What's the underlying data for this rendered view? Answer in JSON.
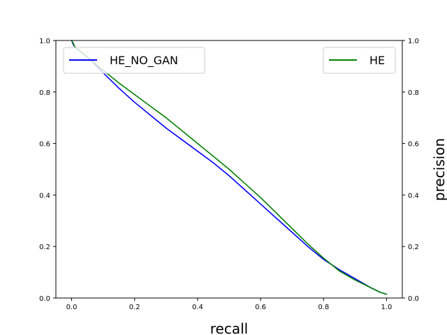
{
  "chart_data": {
    "type": "line",
    "title": "",
    "xlabel": "recall",
    "ylabel": "precision",
    "xlim": [
      -0.05,
      1.05
    ],
    "ylim": [
      0.0,
      1.0
    ],
    "x_ticks": [
      "0.0",
      "0.2",
      "0.4",
      "0.6",
      "0.8",
      "1.0"
    ],
    "x_tick_values": [
      0.0,
      0.2,
      0.4,
      0.6,
      0.8,
      1.0
    ],
    "y_ticks": [
      "0.0",
      "0.2",
      "0.4",
      "0.6",
      "0.8",
      "1.0"
    ],
    "y_tick_values": [
      0.0,
      0.2,
      0.4,
      0.6,
      0.8,
      1.0
    ],
    "grid": false,
    "series": [
      {
        "name": "HE_NO_GAN",
        "color": "#0000ff",
        "legend_position": "upper-left",
        "x": [
          0.0,
          0.005,
          0.01,
          0.03,
          0.06,
          0.1,
          0.15,
          0.2,
          0.25,
          0.3,
          0.35,
          0.4,
          0.45,
          0.5,
          0.55,
          0.6,
          0.65,
          0.7,
          0.75,
          0.8,
          0.85,
          0.9,
          0.95,
          0.98,
          1.0
        ],
        "y": [
          1.0,
          0.985,
          0.975,
          0.955,
          0.925,
          0.875,
          0.815,
          0.76,
          0.71,
          0.66,
          0.615,
          0.57,
          0.525,
          0.475,
          0.42,
          0.365,
          0.31,
          0.255,
          0.2,
          0.15,
          0.11,
          0.075,
          0.04,
          0.022,
          0.015
        ]
      },
      {
        "name": "HE",
        "color": "#008000",
        "legend_position": "upper-right",
        "x": [
          0.0,
          0.005,
          0.01,
          0.03,
          0.06,
          0.1,
          0.15,
          0.2,
          0.25,
          0.3,
          0.35,
          0.4,
          0.45,
          0.5,
          0.55,
          0.6,
          0.65,
          0.7,
          0.75,
          0.8,
          0.85,
          0.9,
          0.95,
          0.98,
          1.0
        ],
        "y": [
          1.0,
          0.99,
          0.975,
          0.955,
          0.925,
          0.885,
          0.835,
          0.79,
          0.745,
          0.7,
          0.65,
          0.6,
          0.55,
          0.5,
          0.445,
          0.39,
          0.33,
          0.27,
          0.21,
          0.155,
          0.105,
          0.07,
          0.04,
          0.022,
          0.015
        ]
      }
    ]
  }
}
